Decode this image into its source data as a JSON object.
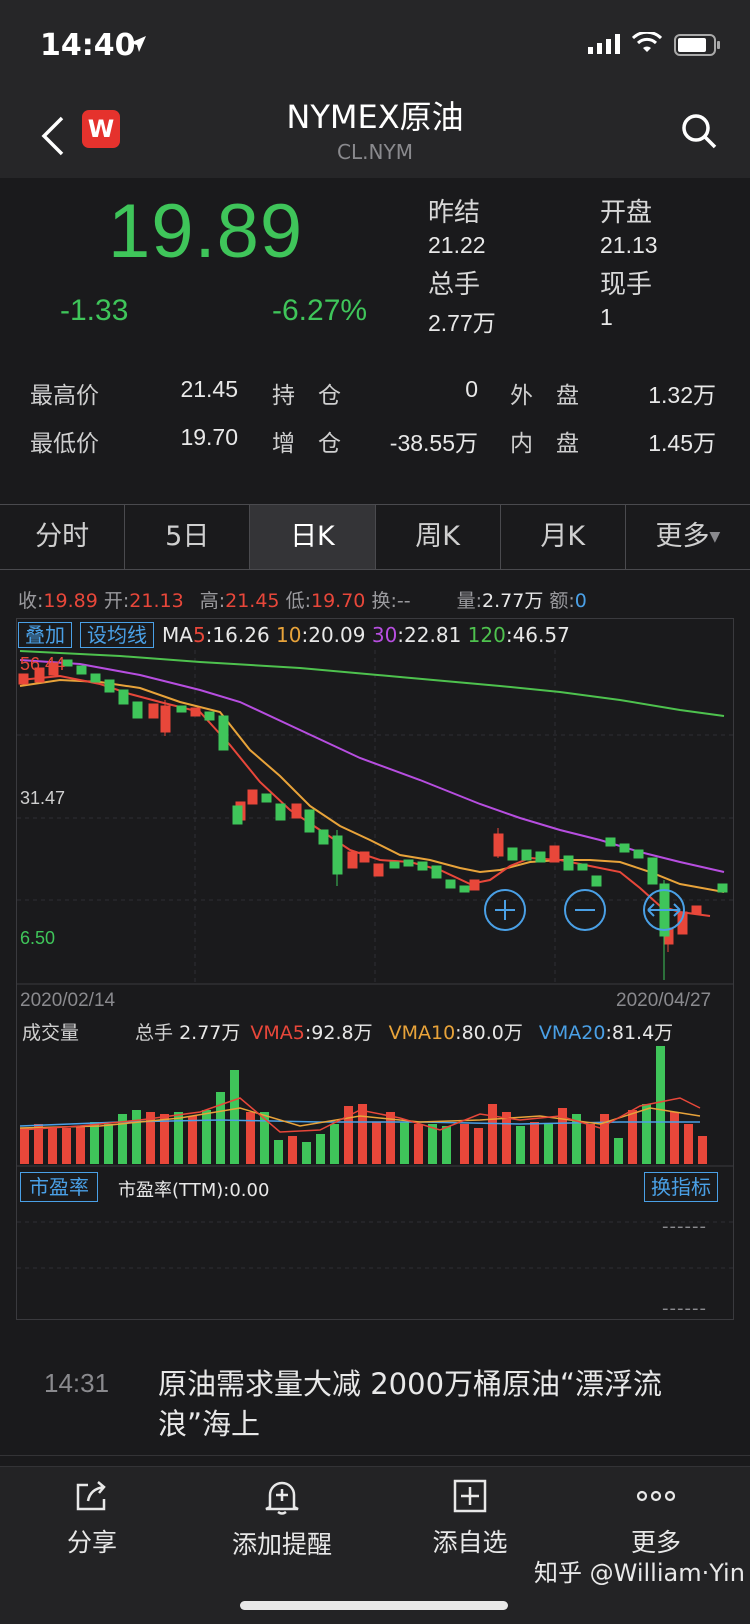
{
  "status": {
    "time": "14:40"
  },
  "nav": {
    "title": "NYMEX原油",
    "subtitle": "CL.NYM",
    "logo": "W"
  },
  "quote": {
    "price": "19.89",
    "change": "-1.33",
    "change_pct": "-6.27%",
    "prev_settle_label": "昨结",
    "prev_settle": "21.22",
    "open_label": "开盘",
    "open": "21.13",
    "total_vol_label": "总手",
    "total_vol": "2.77万",
    "cur_vol_label": "现手",
    "cur_vol": "1",
    "rows": [
      {
        "l1": "最高价",
        "v1": "21.45",
        "l2": "持　仓",
        "v2": "0",
        "l3": "外　盘",
        "v3": "1.32万"
      },
      {
        "l1": "最低价",
        "v1": "19.70",
        "l2": "增　仓",
        "v2": "-38.55万",
        "l3": "内　盘",
        "v3": "1.45万"
      }
    ]
  },
  "tabs": [
    "分时",
    "5日",
    "日K",
    "周K",
    "月K",
    "更多"
  ],
  "info": {
    "close_label": "收:",
    "close": "19.89",
    "open_label": "开:",
    "open": "21.13",
    "high_label": "高:",
    "high": "21.45",
    "low_label": "低:",
    "low": "19.70",
    "turnover_label": "换:",
    "turnover": "--",
    "vol_label": "量:",
    "vol": "2.77万",
    "amount_label": "额:",
    "amount": "0"
  },
  "chart": {
    "overlay_btn": "叠加",
    "ma_btn": "设均线",
    "ma_prefix": "MA",
    "ma5_key": "5",
    "ma5": ":16.26",
    "ma10_key": "10",
    "ma10": ":20.09",
    "ma30_key": "30",
    "ma30": ":22.81",
    "ma120_key": "120",
    "ma120": ":46.57",
    "y_top": "56.44",
    "y_mid": "31.47",
    "y_low": "6.50",
    "date_start": "2020/02/14",
    "date_end": "2020/04/27",
    "vol_title": "成交量",
    "vol_total_label": "总手",
    "vol_total": "2.77万",
    "vma5_label": "VMA5",
    "vma5": ":92.8万",
    "vma10_label": "VMA10",
    "vma10": ":80.0万",
    "vma20_label": "VMA20",
    "vma20": ":81.4万",
    "pe_btn": "市盈率",
    "pe_text": "市盈率(TTM):0.00",
    "switch_btn": "换指标",
    "dash": "------",
    "colors": {
      "up": "#e8473a",
      "down": "#3fc55a",
      "ma5": "#e8473a",
      "ma10": "#e8a33a",
      "ma30": "#b74ee0",
      "ma120": "#4ec24e",
      "vma20": "#4aa0e6"
    }
  },
  "news": {
    "time": "14:31",
    "headline": "原油需求量大减 2000万桶原油“漂浮流浪”海上"
  },
  "bottom": {
    "items": [
      {
        "label": "分享",
        "icon": "share-icon"
      },
      {
        "label": "添加提醒",
        "icon": "bell-plus-icon"
      },
      {
        "label": "添自选",
        "icon": "add-square-icon"
      },
      {
        "label": "更多",
        "icon": "more-dots-icon"
      }
    ],
    "watermark": "知乎 @William·Yin"
  }
}
